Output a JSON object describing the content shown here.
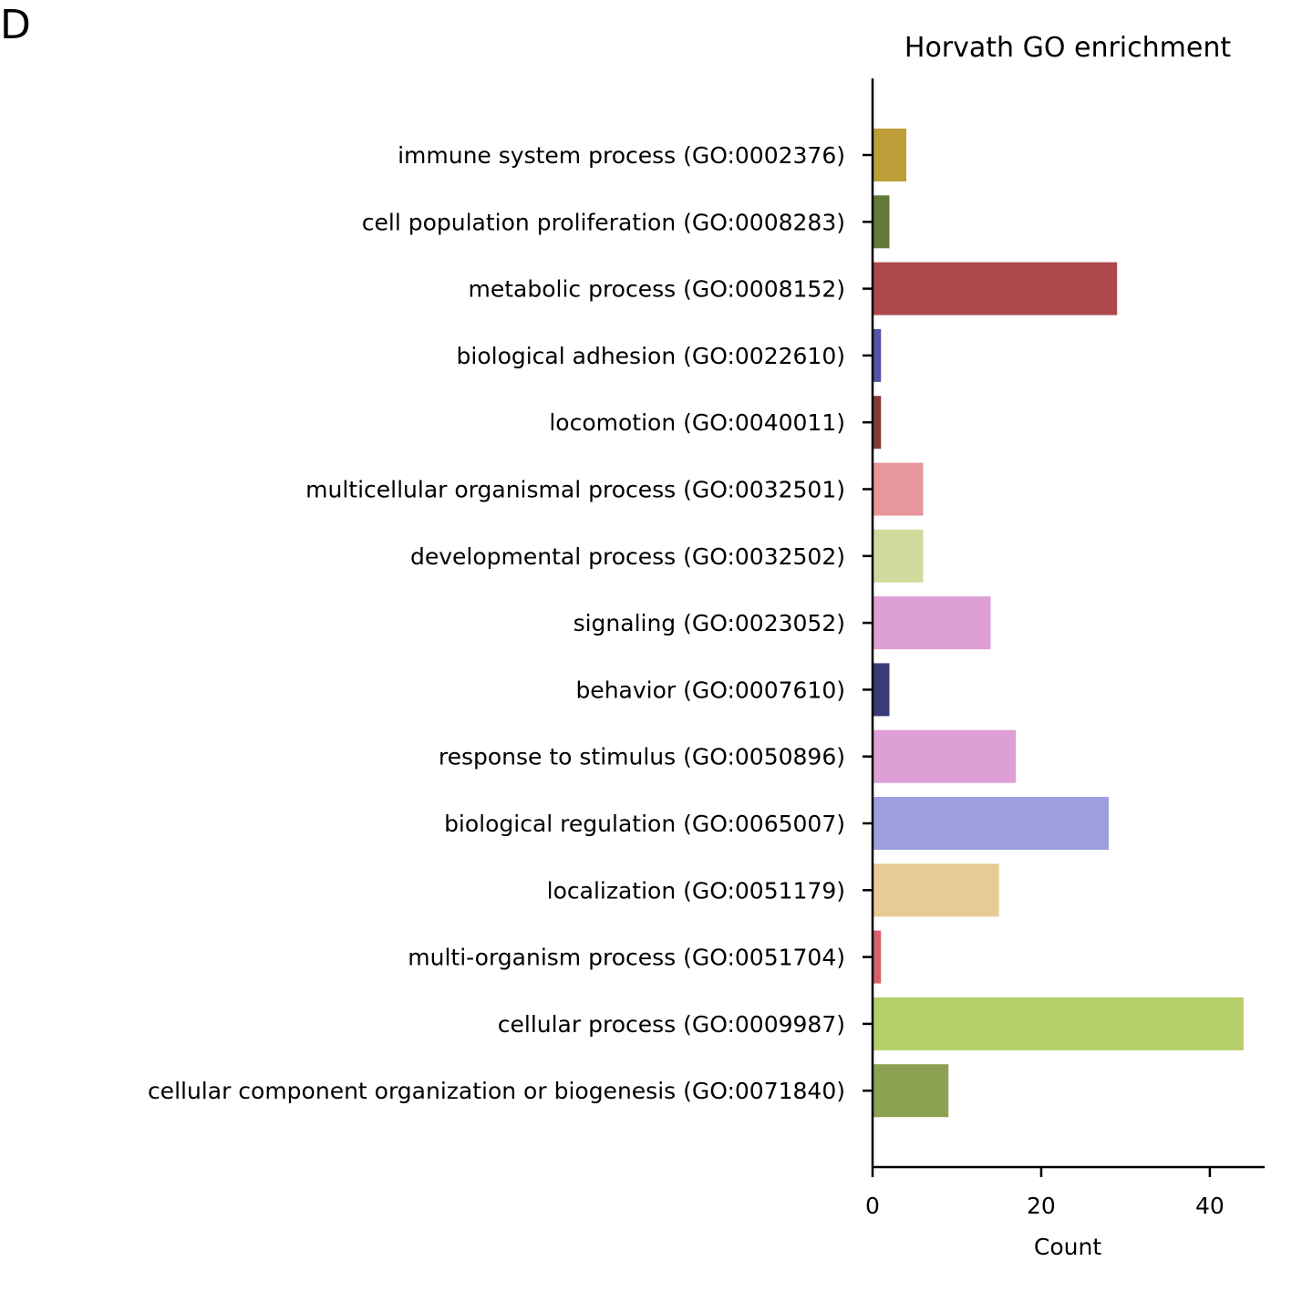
{
  "panel_label": "D",
  "chart_data": {
    "type": "bar",
    "orientation": "horizontal",
    "title": "Horvath GO enrichment",
    "xlabel": "Count",
    "ylabel": "",
    "xlim": [
      0,
      46.5
    ],
    "xticks": [
      0,
      20,
      40
    ],
    "grid": false,
    "legend": "none",
    "categories": [
      "immune system process (GO:0002376)",
      "cell population proliferation (GO:0008283)",
      "metabolic process (GO:0008152)",
      "biological adhesion (GO:0022610)",
      "locomotion (GO:0040011)",
      "multicellular organismal process (GO:0032501)",
      "developmental process (GO:0032502)",
      "signaling (GO:0023052)",
      "behavior (GO:0007610)",
      "response to stimulus (GO:0050896)",
      "biological regulation (GO:0065007)",
      "localization (GO:0051179)",
      "multi-organism process (GO:0051704)",
      "cellular process (GO:0009987)",
      "cellular component organization or biogenesis (GO:0071840)"
    ],
    "values": [
      4,
      2,
      29,
      1,
      1,
      6,
      6,
      14,
      2,
      17,
      28,
      15,
      1,
      44,
      9
    ],
    "colors": [
      "#bd9e39",
      "#637939",
      "#ad494a",
      "#5254a3",
      "#843c39",
      "#e7969c",
      "#cedb9c",
      "#de9ed6",
      "#393b79",
      "#de9ed6",
      "#9c9ede",
      "#e7cb94",
      "#d6616b",
      "#b5cf6b",
      "#8ca252"
    ]
  }
}
